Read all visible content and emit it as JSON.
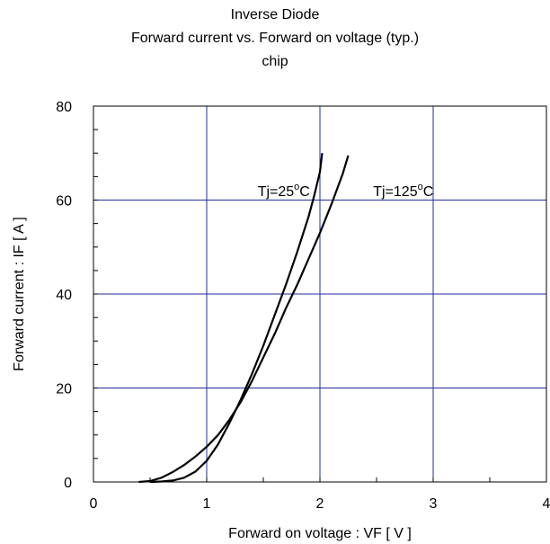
{
  "chart_data": {
    "type": "line",
    "title_lines": [
      "Inverse Diode",
      "Forward current vs. Forward on voltage (typ.)",
      "chip"
    ],
    "xlabel": "Forward on voltage : VF [ V ]",
    "ylabel": "Forward current : IF [ A ]",
    "xlim": [
      0,
      4
    ],
    "ylim": [
      0,
      80
    ],
    "x_ticks": [
      0,
      1,
      2,
      3,
      4
    ],
    "y_ticks": [
      0,
      20,
      40,
      60,
      80
    ],
    "x_minor_step": 0.5,
    "y_minor_step": 5,
    "grid": true,
    "grid_color": "#1f2f9f",
    "line_color": "#000000",
    "series": [
      {
        "name": "Tj=25°C",
        "label_main": "Tj=25",
        "label_sup": "o",
        "label_tail": "C",
        "label_at": [
          1.45,
          62
        ],
        "points": [
          [
            0.5,
            0
          ],
          [
            0.6,
            0.1
          ],
          [
            0.7,
            0.3
          ],
          [
            0.8,
            0.9
          ],
          [
            0.9,
            2.2
          ],
          [
            1.0,
            4.5
          ],
          [
            1.1,
            8
          ],
          [
            1.2,
            12.5
          ],
          [
            1.3,
            17.5
          ],
          [
            1.4,
            23
          ],
          [
            1.5,
            29
          ],
          [
            1.6,
            35.5
          ],
          [
            1.7,
            42
          ],
          [
            1.8,
            49
          ],
          [
            1.9,
            56.5
          ],
          [
            1.95,
            61
          ],
          [
            2.0,
            66
          ],
          [
            2.02,
            70
          ]
        ]
      },
      {
        "name": "Tj=125°C",
        "label_main": "Tj=125",
        "label_sup": "o",
        "label_tail": "C",
        "label_at": [
          2.47,
          62
        ],
        "points": [
          [
            0.4,
            0
          ],
          [
            0.5,
            0.2
          ],
          [
            0.6,
            0.9
          ],
          [
            0.7,
            2.1
          ],
          [
            0.8,
            3.6
          ],
          [
            0.9,
            5.4
          ],
          [
            1.0,
            7.5
          ],
          [
            1.1,
            10
          ],
          [
            1.2,
            13.2
          ],
          [
            1.3,
            17
          ],
          [
            1.4,
            21.5
          ],
          [
            1.5,
            26.5
          ],
          [
            1.6,
            31.5
          ],
          [
            1.7,
            37
          ],
          [
            1.8,
            42
          ],
          [
            1.9,
            47.5
          ],
          [
            2.0,
            53
          ],
          [
            2.1,
            59
          ],
          [
            2.2,
            65.5
          ],
          [
            2.25,
            69.5
          ]
        ]
      }
    ]
  }
}
